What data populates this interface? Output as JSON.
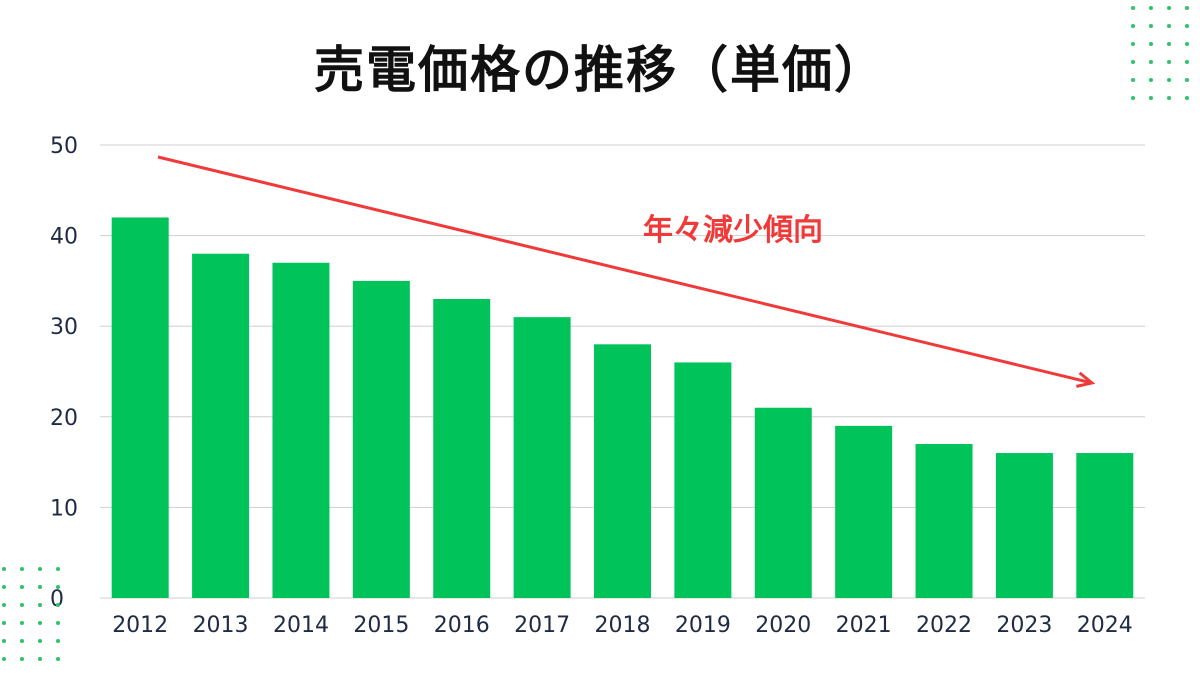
{
  "chart_data": {
    "type": "bar",
    "title": "売電価格の推移（単価）",
    "categories": [
      "2012",
      "2013",
      "2014",
      "2015",
      "2016",
      "2017",
      "2018",
      "2019",
      "2020",
      "2021",
      "2022",
      "2023",
      "2024"
    ],
    "values": [
      42,
      38,
      37,
      35,
      33,
      31,
      28,
      26,
      21,
      19,
      17,
      16,
      16
    ],
    "xlabel": "",
    "ylabel": "",
    "ylim": [
      0,
      50
    ],
    "yticks": [
      0,
      10,
      20,
      30,
      40,
      50
    ],
    "grid": true,
    "bar_color": "#00c35a",
    "annotation": {
      "text": "年々減少傾向",
      "color": "#f03a3a",
      "style": "downward-trend-arrow"
    }
  },
  "colors": {
    "grid": "#cfcfcf",
    "axis_text": "#1f2a44",
    "decor_dots": "#2ec26a"
  }
}
